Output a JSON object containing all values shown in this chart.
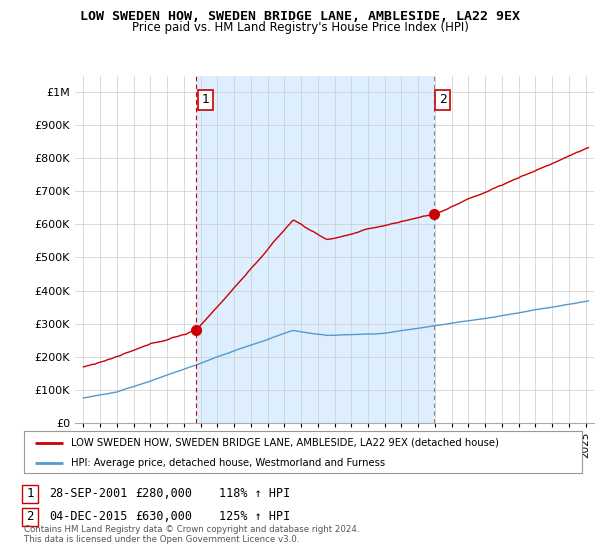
{
  "title": "LOW SWEDEN HOW, SWEDEN BRIDGE LANE, AMBLESIDE, LA22 9EX",
  "subtitle": "Price paid vs. HM Land Registry's House Price Index (HPI)",
  "ylim": [
    0,
    1050000
  ],
  "yticks": [
    0,
    100000,
    200000,
    300000,
    400000,
    500000,
    600000,
    700000,
    800000,
    900000,
    1000000
  ],
  "ytick_labels": [
    "£0",
    "£100K",
    "£200K",
    "£300K",
    "£400K",
    "£500K",
    "£600K",
    "£700K",
    "£800K",
    "£900K",
    "£1M"
  ],
  "sale1_date": 2001.75,
  "sale1_price": 280000,
  "sale1_label": "1",
  "sale2_date": 2015.92,
  "sale2_price": 630000,
  "sale2_label": "2",
  "red_line_color": "#cc0000",
  "blue_line_color": "#5599cc",
  "vline1_color": "#cc0000",
  "vline2_color": "#888888",
  "shading_color": "#ddeeff",
  "background_color": "#ffffff",
  "grid_color": "#cccccc",
  "legend_label_red": "LOW SWEDEN HOW, SWEDEN BRIDGE LANE, AMBLESIDE, LA22 9EX (detached house)",
  "legend_label_blue": "HPI: Average price, detached house, Westmorland and Furness",
  "footnote": "Contains HM Land Registry data © Crown copyright and database right 2024.\nThis data is licensed under the Open Government Licence v3.0.",
  "xlim_start": 1994.5,
  "xlim_end": 2025.5
}
